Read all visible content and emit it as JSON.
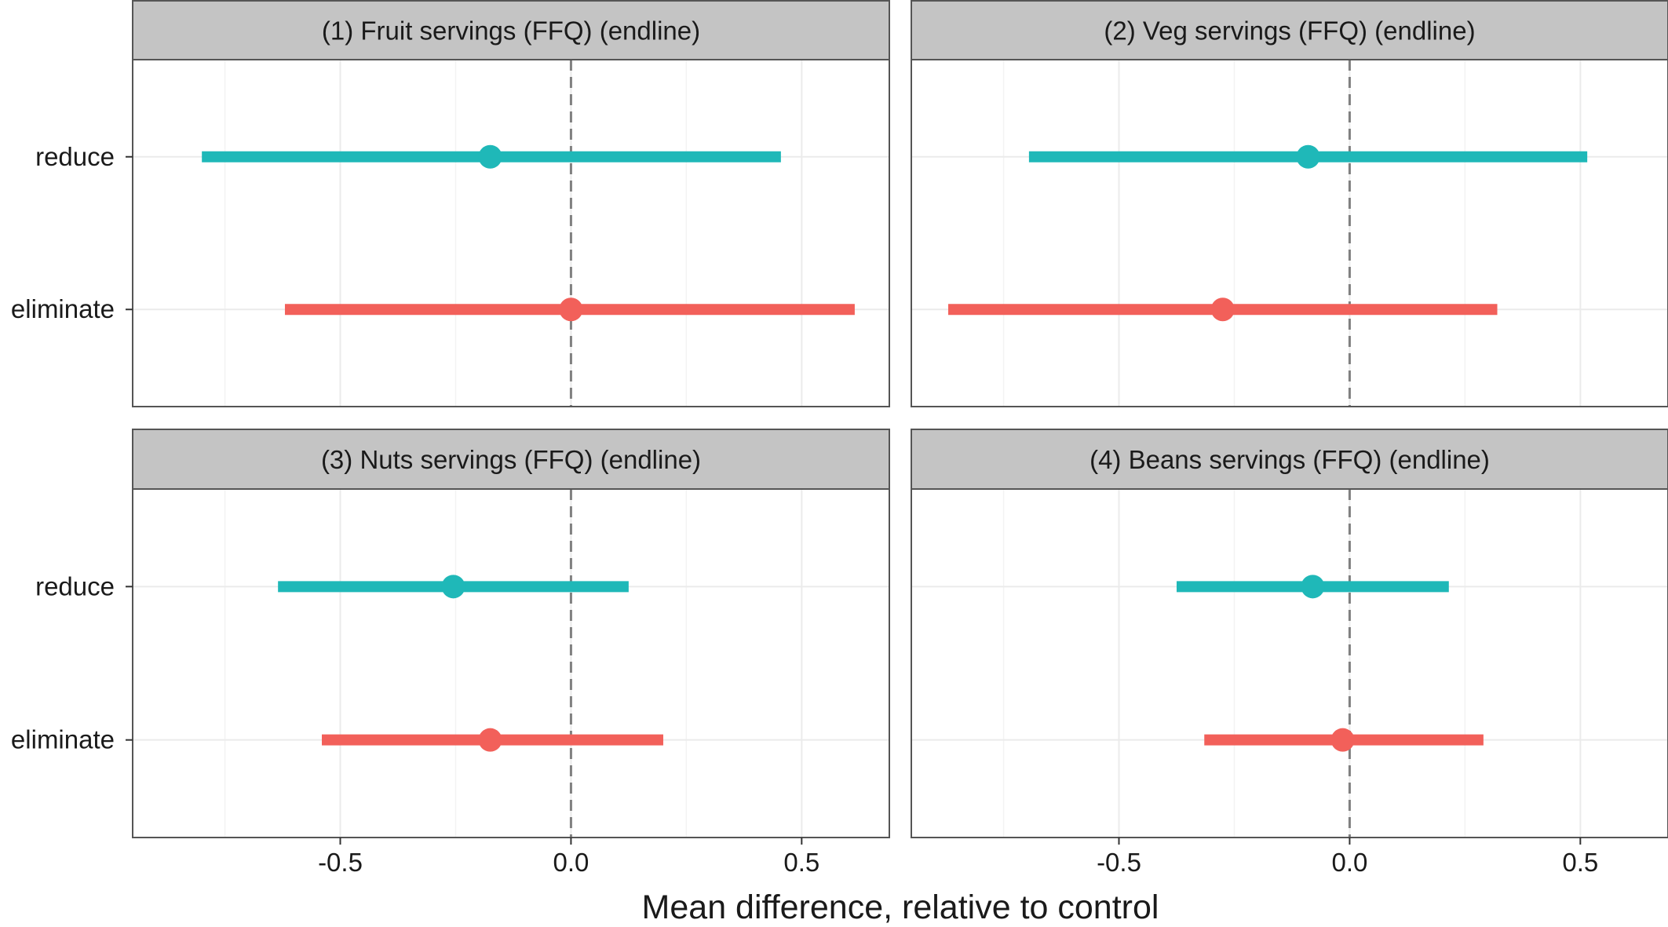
{
  "chart_data": [
    {
      "type": "forest",
      "title": "(1) Fruit servings (FFQ) (endline)",
      "xlabel": "Mean difference, relative to control",
      "xlim": [
        -0.95,
        0.69
      ],
      "x_ticks": [
        -0.5,
        0.0,
        0.5
      ],
      "categories": [
        "reduce",
        "eliminate"
      ],
      "series": [
        {
          "name": "reduce",
          "color": "#1fb8b8",
          "estimate": -0.175,
          "low": -0.8,
          "high": 0.455
        },
        {
          "name": "eliminate",
          "color": "#f2605a",
          "estimate": 0.0,
          "low": -0.62,
          "high": 0.615
        }
      ]
    },
    {
      "type": "forest",
      "title": "(2) Veg servings (FFQ) (endline)",
      "xlabel": "Mean difference, relative to control",
      "xlim": [
        -0.95,
        0.69
      ],
      "x_ticks": [
        -0.5,
        0.0,
        0.5
      ],
      "categories": [
        "reduce",
        "eliminate"
      ],
      "series": [
        {
          "name": "reduce",
          "color": "#1fb8b8",
          "estimate": -0.09,
          "low": -0.695,
          "high": 0.515
        },
        {
          "name": "eliminate",
          "color": "#f2605a",
          "estimate": -0.275,
          "low": -0.87,
          "high": 0.32
        }
      ]
    },
    {
      "type": "forest",
      "title": "(3) Nuts servings (FFQ) (endline)",
      "xlabel": "Mean difference, relative to control",
      "xlim": [
        -0.95,
        0.69
      ],
      "x_ticks": [
        -0.5,
        0.0,
        0.5
      ],
      "categories": [
        "reduce",
        "eliminate"
      ],
      "series": [
        {
          "name": "reduce",
          "color": "#1fb8b8",
          "estimate": -0.255,
          "low": -0.635,
          "high": 0.125
        },
        {
          "name": "eliminate",
          "color": "#f2605a",
          "estimate": -0.175,
          "low": -0.54,
          "high": 0.2
        }
      ]
    },
    {
      "type": "forest",
      "title": "(4) Beans servings (FFQ) (endline)",
      "xlabel": "Mean difference, relative to control",
      "xlim": [
        -0.95,
        0.69
      ],
      "x_ticks": [
        -0.5,
        0.0,
        0.5
      ],
      "categories": [
        "reduce",
        "eliminate"
      ],
      "series": [
        {
          "name": "reduce",
          "color": "#1fb8b8",
          "estimate": -0.08,
          "low": -0.375,
          "high": 0.215
        },
        {
          "name": "eliminate",
          "color": "#f2605a",
          "estimate": -0.015,
          "low": -0.315,
          "high": 0.29
        }
      ]
    }
  ],
  "shared": {
    "xlabel": "Mean difference, relative to control",
    "tick_labels": [
      "-0.5",
      "0.0",
      "0.5"
    ],
    "reference_line_x": 0.0,
    "grid": true,
    "strip_color": "#c4c4c4",
    "panel_border_color": "#555555",
    "grid_color": "#ebebeb",
    "reference_line_color": "#808080"
  }
}
